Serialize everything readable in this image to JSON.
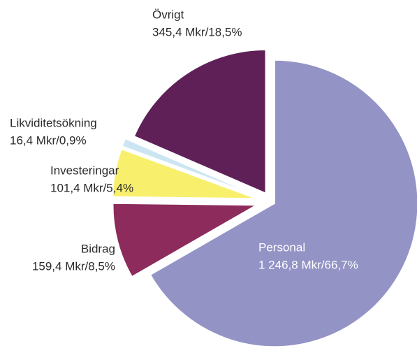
{
  "chart_data": {
    "type": "pie",
    "categories": [
      "Personal",
      "Bidrag",
      "Investeringar",
      "Likviditetsökning",
      "Övrigt"
    ],
    "values": [
      66.7,
      8.5,
      5.4,
      0.9,
      18.5
    ],
    "value_labels": [
      "1 246,8 Mkr/66,7%",
      "159,4 Mkr/8,5%",
      "101,4 Mkr/5,4%",
      "16,4 Mkr/0,9%",
      "345,4 Mkr/18,5%"
    ],
    "colors": [
      "#9393c6",
      "#8c2b5c",
      "#f8f06c",
      "#cbe6f2",
      "#5f2058"
    ]
  }
}
